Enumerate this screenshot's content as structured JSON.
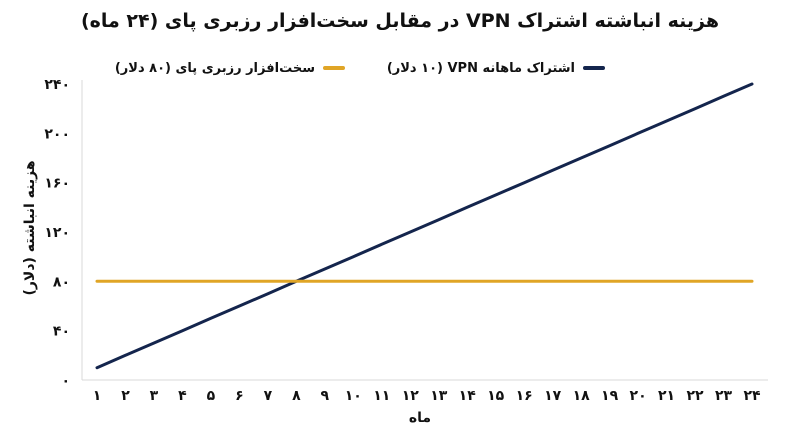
{
  "chart_data": {
    "type": "line",
    "title": "هزینه انباشته اشتراک VPN در مقابل سخت‌افزار رزبری پای (۲۴ ماه)",
    "xlabel": "ماه",
    "ylabel": "هزینه انباشته (دلار)",
    "x": [
      1,
      2,
      3,
      4,
      5,
      6,
      7,
      8,
      9,
      10,
      11,
      12,
      13,
      14,
      15,
      16,
      17,
      18,
      19,
      20,
      21,
      22,
      23,
      24
    ],
    "x_tick_labels": [
      "۱",
      "۲",
      "۳",
      "۴",
      "۵",
      "۶",
      "۷",
      "۸",
      "۹",
      "۱۰",
      "۱۱",
      "۱۲",
      "۱۳",
      "۱۴",
      "۱۵",
      "۱۶",
      "۱۷",
      "۱۸",
      "۱۹",
      "۲۰",
      "۲۱",
      "۲۲",
      "۲۳",
      "۲۴"
    ],
    "y_ticks": [
      0,
      40,
      80,
      120,
      160,
      200,
      240
    ],
    "y_tick_labels": [
      "۰",
      "۴۰",
      "۸۰",
      "۱۲۰",
      "۱۶۰",
      "۲۰۰",
      "۲۴۰"
    ],
    "ylim": [
      0,
      240
    ],
    "grid": false,
    "legend_position": "top",
    "series": [
      {
        "name": "اشتراک ماهانه VPN (۱۰ دلار)",
        "color": "#14254d",
        "values": [
          10,
          20,
          30,
          40,
          50,
          60,
          70,
          80,
          90,
          100,
          110,
          120,
          130,
          140,
          150,
          160,
          170,
          180,
          190,
          200,
          210,
          220,
          230,
          240
        ]
      },
      {
        "name": "سخت‌افزار رزبری پای (۸۰ دلار)",
        "color": "#e0a526",
        "values": [
          80,
          80,
          80,
          80,
          80,
          80,
          80,
          80,
          80,
          80,
          80,
          80,
          80,
          80,
          80,
          80,
          80,
          80,
          80,
          80,
          80,
          80,
          80,
          80
        ]
      }
    ]
  }
}
